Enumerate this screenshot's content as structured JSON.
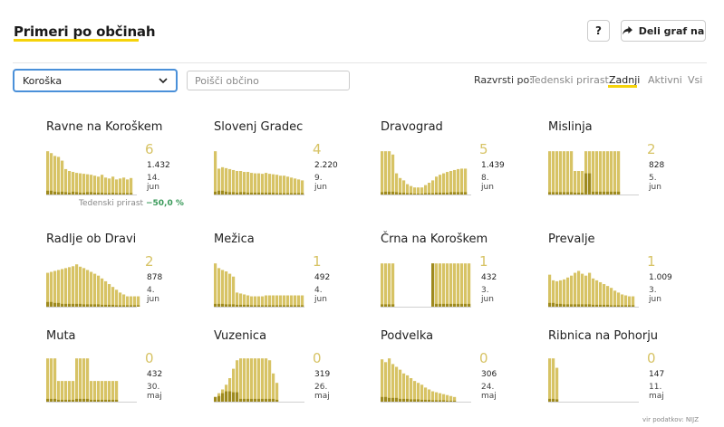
{
  "header": {
    "title": "Primeri po občinah",
    "help_label": "?",
    "share_label": "Deli graf na"
  },
  "filters": {
    "region_value": "Koroška",
    "search_placeholder": "Poišči občino",
    "sort_label": "Razvrsti po:",
    "sort_options": [
      "Tedenski prirast",
      "Zadnji",
      "Aktivni",
      "Vsi"
    ],
    "sort_selected": "Zadnji"
  },
  "colors": {
    "accent": "#f5d30a",
    "bar": "#d7c365",
    "bar_dark": "#9e8a1e",
    "chart_line": "#d0d0d0",
    "positive": "#3a9a5a"
  },
  "icons": {
    "share": "share-arrow-icon",
    "dropdown": "chevron-down-icon"
  },
  "cards": [
    {
      "name": "Ravne na Koroškem",
      "last": "6",
      "total": "1.432",
      "date": "14. jun",
      "bars": [
        0.92,
        0.88,
        0.82,
        0.8,
        0.72,
        0.54,
        0.5,
        0.48,
        0.46,
        0.45,
        0.44,
        0.43,
        0.42,
        0.4,
        0.38,
        0.42,
        0.36,
        0.34,
        0.38,
        0.32,
        0.34,
        0.36,
        0.32,
        0.35
      ],
      "dark": [
        0.08,
        0.08,
        0.06,
        0.05,
        0.06,
        0.05,
        0.04,
        0.06,
        0.05,
        0.04,
        0.04,
        0.05,
        0.05,
        0.04,
        0.04,
        0.04,
        0.03,
        0.03,
        0.04,
        0.03,
        0.03,
        0.03,
        0.03,
        0.03
      ]
    },
    {
      "name": "Slovenj Gradec",
      "last": "4",
      "total": "2.220",
      "date": "9. jun",
      "bars": [
        0.92,
        0.55,
        0.58,
        0.56,
        0.54,
        0.52,
        0.5,
        0.5,
        0.48,
        0.48,
        0.46,
        0.45,
        0.45,
        0.44,
        0.46,
        0.44,
        0.43,
        0.42,
        0.4,
        0.4,
        0.38,
        0.36,
        0.34,
        0.32,
        0.3
      ],
      "dark": [
        0.06,
        0.08,
        0.08,
        0.06,
        0.05,
        0.05,
        0.04,
        0.05,
        0.05,
        0.04,
        0.04,
        0.04,
        0.04,
        0.04,
        0.04,
        0.04,
        0.04,
        0.03,
        0.03,
        0.03,
        0.03,
        0.03,
        0.03,
        0.03,
        0.03
      ]
    },
    {
      "name": "Dravograd",
      "last": "5",
      "total": "1.439",
      "date": "8. jun",
      "bars": [
        0.92,
        0.92,
        0.92,
        0.85,
        0.45,
        0.35,
        0.3,
        0.22,
        0.18,
        0.15,
        0.15,
        0.15,
        0.2,
        0.25,
        0.3,
        0.38,
        0.42,
        0.45,
        0.48,
        0.5,
        0.52,
        0.54,
        0.55,
        0.55
      ],
      "dark": [
        0.05,
        0.06,
        0.06,
        0.06,
        0.05,
        0.04,
        0.04,
        0.03,
        0.03,
        0.02,
        0.02,
        0.02,
        0.03,
        0.03,
        0.03,
        0.04,
        0.04,
        0.04,
        0.04,
        0.05,
        0.05,
        0.05,
        0.05,
        0.05
      ]
    },
    {
      "name": "Mislinja",
      "last": "2",
      "total": "828",
      "date": "5. jun",
      "bars": [
        0.92,
        0.92,
        0.92,
        0.92,
        0.92,
        0.92,
        0.92,
        0.5,
        0.5,
        0.5,
        0.92,
        0.92,
        0.92,
        0.92,
        0.92,
        0.92,
        0.92,
        0.92,
        0.92,
        0.92
      ],
      "dark": [
        0.05,
        0.05,
        0.05,
        0.05,
        0.05,
        0.05,
        0.05,
        0.04,
        0.04,
        0.04,
        0.45,
        0.45,
        0.06,
        0.06,
        0.06,
        0.06,
        0.06,
        0.06,
        0.06,
        0.06
      ]
    },
    {
      "name": "Radlje ob Dravi",
      "last": "2",
      "total": "878",
      "date": "4. jun",
      "bars": [
        0.72,
        0.74,
        0.76,
        0.78,
        0.8,
        0.82,
        0.84,
        0.86,
        0.9,
        0.85,
        0.82,
        0.78,
        0.74,
        0.7,
        0.66,
        0.6,
        0.54,
        0.48,
        0.42,
        0.36,
        0.3,
        0.26,
        0.22,
        0.22,
        0.22,
        0.22
      ],
      "dark": [
        0.1,
        0.1,
        0.08,
        0.08,
        0.06,
        0.06,
        0.06,
        0.06,
        0.06,
        0.06,
        0.05,
        0.05,
        0.05,
        0.05,
        0.05,
        0.04,
        0.04,
        0.04,
        0.04,
        0.03,
        0.03,
        0.03,
        0.03,
        0.03,
        0.03,
        0.03
      ]
    },
    {
      "name": "Mežica",
      "last": "1",
      "total": "492",
      "date": "4. jun",
      "bars": [
        0.92,
        0.82,
        0.78,
        0.75,
        0.7,
        0.64,
        0.3,
        0.28,
        0.26,
        0.24,
        0.22,
        0.22,
        0.22,
        0.22,
        0.24,
        0.24,
        0.24,
        0.24,
        0.24,
        0.24,
        0.24,
        0.24,
        0.24,
        0.24,
        0.24
      ],
      "dark": [
        0.06,
        0.06,
        0.06,
        0.05,
        0.05,
        0.05,
        0.04,
        0.04,
        0.04,
        0.04,
        0.03,
        0.03,
        0.03,
        0.03,
        0.03,
        0.03,
        0.03,
        0.03,
        0.03,
        0.03,
        0.03,
        0.03,
        0.03,
        0.03,
        0.03
      ]
    },
    {
      "name": "Črna na Koroškem",
      "last": "1",
      "total": "432",
      "date": "3. jun",
      "bars": [
        0.92,
        0.92,
        0.92,
        0.92,
        0,
        0,
        0,
        0,
        0,
        0,
        0,
        0,
        0,
        0,
        0.92,
        0.92,
        0.92,
        0.92,
        0.92,
        0.92,
        0.92,
        0.92,
        0.92,
        0.92,
        0.92
      ],
      "dark": [
        0.05,
        0.05,
        0.05,
        0.05,
        0,
        0,
        0,
        0,
        0,
        0,
        0,
        0,
        0,
        0,
        0.92,
        0.06,
        0.06,
        0.06,
        0.06,
        0.06,
        0.06,
        0.06,
        0.06,
        0.06,
        0.06
      ]
    },
    {
      "name": "Prevalje",
      "last": "1",
      "total": "1.009",
      "date": "3. jun",
      "bars": [
        0.68,
        0.56,
        0.54,
        0.56,
        0.58,
        0.62,
        0.66,
        0.72,
        0.76,
        0.7,
        0.66,
        0.72,
        0.6,
        0.56,
        0.52,
        0.48,
        0.44,
        0.4,
        0.34,
        0.3,
        0.26,
        0.24,
        0.22,
        0.22
      ],
      "dark": [
        0.08,
        0.08,
        0.06,
        0.06,
        0.05,
        0.05,
        0.05,
        0.05,
        0.05,
        0.05,
        0.05,
        0.05,
        0.04,
        0.04,
        0.04,
        0.04,
        0.04,
        0.03,
        0.03,
        0.03,
        0.03,
        0.03,
        0.03,
        0.03
      ]
    },
    {
      "name": "Muta",
      "last": "0",
      "total": "432",
      "date": "30. maj",
      "bars": [
        0.92,
        0.92,
        0.92,
        0.44,
        0.44,
        0.44,
        0.44,
        0.44,
        0.92,
        0.92,
        0.92,
        0.92,
        0.44,
        0.44,
        0.44,
        0.44,
        0.44,
        0.44,
        0.44,
        0.44
      ],
      "dark": [
        0.06,
        0.06,
        0.06,
        0.04,
        0.04,
        0.04,
        0.04,
        0.04,
        0.06,
        0.06,
        0.06,
        0.06,
        0.04,
        0.04,
        0.04,
        0.04,
        0.04,
        0.04,
        0.04,
        0.04
      ]
    },
    {
      "name": "Vuzenica",
      "last": "0",
      "total": "319",
      "date": "26. maj",
      "bars": [
        0.1,
        0.18,
        0.26,
        0.36,
        0.5,
        0.7,
        0.88,
        0.92,
        0.92,
        0.92,
        0.92,
        0.92,
        0.92,
        0.92,
        0.92,
        0.88,
        0.6,
        0.4
      ],
      "dark": [
        0.1,
        0.12,
        0.18,
        0.22,
        0.22,
        0.2,
        0.2,
        0.06,
        0.06,
        0.06,
        0.06,
        0.06,
        0.06,
        0.06,
        0.06,
        0.06,
        0.06,
        0.04
      ]
    },
    {
      "name": "Podvelka",
      "last": "0",
      "total": "306",
      "date": "24. maj",
      "bars": [
        0.9,
        0.84,
        0.92,
        0.8,
        0.74,
        0.68,
        0.6,
        0.56,
        0.5,
        0.44,
        0.4,
        0.36,
        0.3,
        0.26,
        0.22,
        0.2,
        0.18,
        0.16,
        0.14,
        0.12,
        0.1
      ],
      "dark": [
        0.1,
        0.1,
        0.08,
        0.08,
        0.08,
        0.06,
        0.06,
        0.06,
        0.05,
        0.05,
        0.05,
        0.04,
        0.04,
        0.04,
        0.03,
        0.03,
        0.03,
        0.03,
        0.02,
        0.02,
        0.02
      ]
    },
    {
      "name": "Ribnica na Pohorju",
      "last": "0",
      "total": "147",
      "date": "11. maj",
      "bars": [
        0.92,
        0.92,
        0.72,
        0,
        0,
        0,
        0,
        0,
        0,
        0,
        0,
        0,
        0,
        0,
        0,
        0,
        0,
        0,
        0,
        0
      ],
      "dark": [
        0.06,
        0.06,
        0.05,
        0,
        0,
        0,
        0,
        0,
        0,
        0,
        0,
        0,
        0,
        0,
        0,
        0,
        0,
        0,
        0,
        0
      ]
    }
  ],
  "growth": {
    "label": "Tedenski prirast",
    "value": "−50,0 %"
  },
  "footer": {
    "source": "vir podatkov: NIJZ"
  }
}
